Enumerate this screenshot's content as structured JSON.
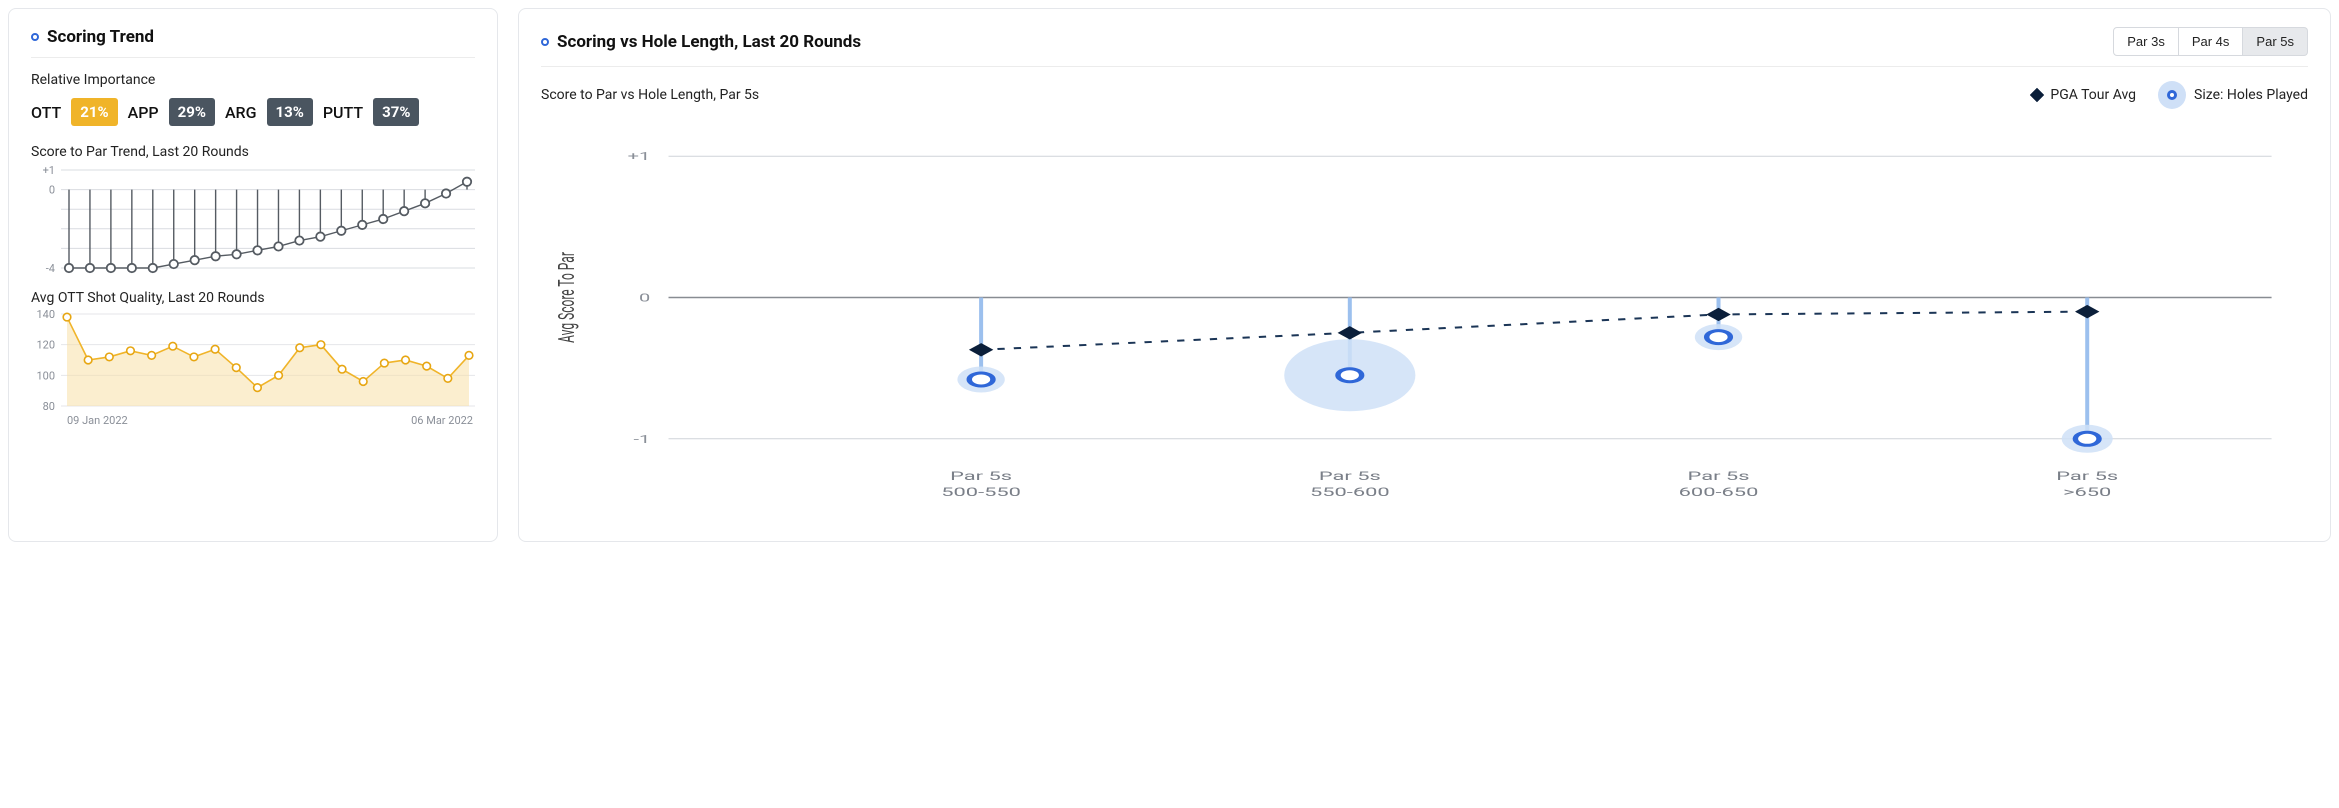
{
  "left_card": {
    "title": "Scoring Trend",
    "relative_importance": {
      "heading": "Relative Importance",
      "items": [
        {
          "label": "OTT",
          "value": "21%",
          "bg": "#f0b429"
        },
        {
          "label": "APP",
          "value": "29%",
          "bg": "#4a5560"
        },
        {
          "label": "ARG",
          "value": "13%",
          "bg": "#4a5560"
        },
        {
          "label": "PUTT",
          "value": "37%",
          "bg": "#4a5560"
        }
      ]
    },
    "score_trend": {
      "label": "Score to Par Trend, Last 20 Rounds",
      "type": "lollipop-line",
      "yticks": [
        "+1",
        "0",
        "-4"
      ],
      "ylim": [
        -4,
        1
      ],
      "grid_color": "#d9dce1",
      "marker_color": "#555b62",
      "marker_fill": "#ffffff",
      "line_color": "#555b62",
      "values": [
        -4,
        -4,
        -4,
        -4,
        -4,
        -3.8,
        -3.6,
        -3.4,
        -3.3,
        -3.1,
        -2.9,
        -2.6,
        -2.4,
        -2.1,
        -1.8,
        -1.5,
        -1.1,
        -0.7,
        -0.2,
        0.4
      ]
    },
    "ott_quality": {
      "label": "Avg OTT Shot Quality, Last 20 Rounds",
      "type": "area-line",
      "yticks": [
        "140",
        "120",
        "100",
        "80"
      ],
      "ylim": [
        80,
        140
      ],
      "grid_color": "#e4e6ea",
      "line_color": "#f0b429",
      "fill_color": "#f8e0a8",
      "marker_color": "#e7a612",
      "marker_fill": "#ffffff",
      "values": [
        138,
        110,
        112,
        116,
        113,
        119,
        112,
        117,
        105,
        92,
        100,
        118,
        120,
        104,
        96,
        108,
        110,
        106,
        98,
        113
      ],
      "x_start_label": "09 Jan 2022",
      "x_end_label": "06 Mar 2022"
    }
  },
  "right_card": {
    "title": "Scoring vs Hole Length, Last 20 Rounds",
    "tabs": [
      {
        "label": "Par 3s",
        "active": false
      },
      {
        "label": "Par 4s",
        "active": false
      },
      {
        "label": "Par 5s",
        "active": true
      }
    ],
    "subtitle": "Score to Par vs Hole Length, Par 5s",
    "legend": {
      "pga": "PGA Tour Avg",
      "size": "Size: Holes Played"
    },
    "chart": {
      "type": "bubble-with-diamond-line",
      "y_axis_label": "Avg Score To Par",
      "yticks": [
        "+1",
        "0",
        "-1"
      ],
      "ylim": [
        -1.15,
        1.15
      ],
      "grid_color": "#cfd3d9",
      "zero_line_color": "#888c92",
      "stem_color": "#9cc0ee",
      "bubble_stroke": "#2f67d8",
      "bubble_fill": "#cfe0f7",
      "bubble_inner_fill": "#ffffff",
      "diamond_color": "#0b1f3a",
      "dash_color": "#1b3556",
      "categories": [
        {
          "line1": "Par 5s",
          "line2": "500-550",
          "player": -0.58,
          "pga": -0.37,
          "size_r": 13
        },
        {
          "line1": "Par 5s",
          "line2": "550-600",
          "player": -0.55,
          "pga": -0.25,
          "size_r": 36
        },
        {
          "line1": "Par 5s",
          "line2": "600-650",
          "player": -0.28,
          "pga": -0.12,
          "size_r": 13
        },
        {
          "line1": "Par 5s",
          "line2": ">650",
          "player": -1.0,
          "pga": -0.1,
          "size_r": 14
        }
      ]
    }
  }
}
